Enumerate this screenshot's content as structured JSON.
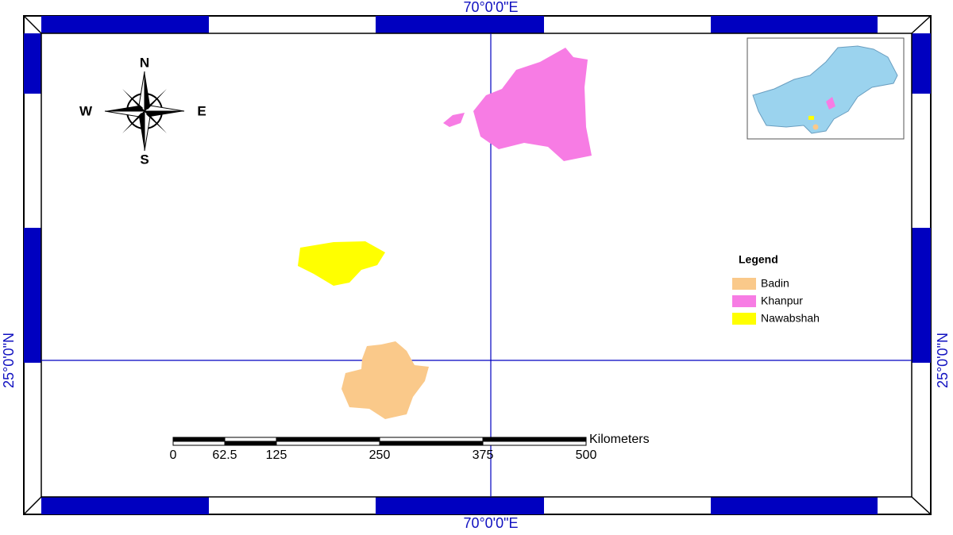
{
  "grid_labels": {
    "top": "70°0'0\"E",
    "bottom": "70°0'0\"E",
    "left": "25°0'0\"N",
    "right": "25°0'0\"N"
  },
  "compass": {
    "north": "N",
    "south": "S",
    "east": "E",
    "west": "W"
  },
  "legend": {
    "title": "Legend",
    "items": [
      {
        "label": "Badin",
        "color": "#fac98a"
      },
      {
        "label": "Khanpur",
        "color": "#f77ce4"
      },
      {
        "label": "Nawabshah",
        "color": "#ffff00"
      }
    ]
  },
  "scale_bar": {
    "ticks": [
      0,
      62.5,
      125,
      250,
      375,
      500
    ],
    "unit": "Kilometers"
  }
}
